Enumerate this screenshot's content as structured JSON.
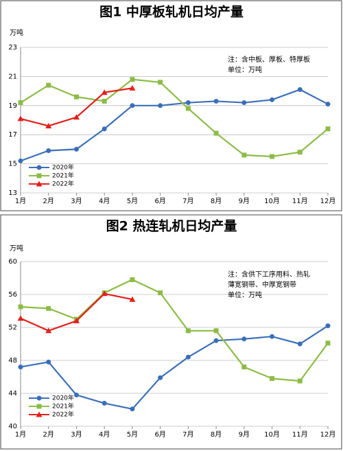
{
  "chart_data": [
    {
      "type": "line",
      "title": "图1 中厚板轧机日均产量",
      "y_label": "万吨",
      "notes": [
        "注：含中板、厚板、特厚板",
        "单位：万吨"
      ],
      "categories": [
        "1月",
        "2月",
        "3月",
        "4月",
        "5月",
        "6月",
        "7月",
        "8月",
        "9月",
        "10月",
        "11月",
        "12月"
      ],
      "ylim": [
        13,
        23
      ],
      "yticks": [
        13,
        15,
        17,
        19,
        21,
        23
      ],
      "grid": true,
      "series": [
        {
          "name": "2020年",
          "color": "#3a6fb8",
          "marker": "circle",
          "values": [
            15.2,
            15.9,
            16.0,
            17.4,
            19.0,
            19.0,
            19.2,
            19.3,
            19.2,
            19.4,
            20.1,
            19.1
          ]
        },
        {
          "name": "2021年",
          "color": "#8cbc46",
          "marker": "square",
          "values": [
            19.2,
            20.4,
            19.6,
            19.3,
            20.8,
            20.6,
            18.8,
            17.1,
            15.6,
            15.5,
            15.8,
            17.4
          ]
        },
        {
          "name": "2022年",
          "color": "#e3201b",
          "marker": "triangle",
          "values": [
            18.1,
            17.6,
            18.2,
            19.9,
            20.2,
            null,
            null,
            null,
            null,
            null,
            null,
            null
          ]
        }
      ]
    },
    {
      "type": "line",
      "title": "图2 热连轧机日均产量",
      "y_label": "万吨",
      "notes": [
        "注：含供下工序用料、热轧",
        "薄宽钢带、中厚宽钢带",
        "单位：万吨"
      ],
      "categories": [
        "1月",
        "2月",
        "3月",
        "4月",
        "5月",
        "6月",
        "7月",
        "8月",
        "9月",
        "10月",
        "11月",
        "12月"
      ],
      "ylim": [
        40,
        60
      ],
      "yticks": [
        40,
        44,
        48,
        52,
        56,
        60
      ],
      "grid": true,
      "series": [
        {
          "name": "2020年",
          "color": "#3a6fb8",
          "marker": "circle",
          "values": [
            47.2,
            47.8,
            43.8,
            42.8,
            42.1,
            45.9,
            48.4,
            50.4,
            50.6,
            50.9,
            50.0,
            52.2
          ]
        },
        {
          "name": "2021年",
          "color": "#8cbc46",
          "marker": "square",
          "values": [
            54.5,
            54.3,
            53.0,
            56.2,
            57.8,
            56.2,
            51.6,
            51.6,
            47.2,
            45.8,
            45.5,
            50.1
          ]
        },
        {
          "name": "2022年",
          "color": "#e3201b",
          "marker": "triangle",
          "values": [
            53.1,
            51.6,
            52.8,
            56.1,
            55.4,
            null,
            null,
            null,
            null,
            null,
            null,
            null
          ]
        }
      ]
    }
  ]
}
